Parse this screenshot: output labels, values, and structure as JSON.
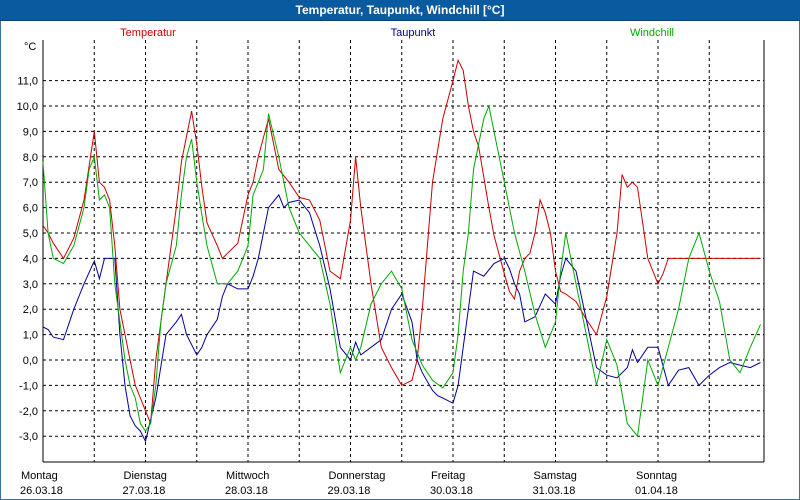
{
  "window": {
    "title": "Temperatur, Taupunkt, Windchill [°C]"
  },
  "chart_data": {
    "type": "line",
    "title": "Temperatur, Taupunkt, Windchill [°C]",
    "ylabel": "°C",
    "ylim": [
      -3.8,
      12.4
    ],
    "yticks": [
      -3,
      -2,
      -1,
      0,
      1,
      2,
      3,
      4,
      5,
      6,
      7,
      8,
      9,
      10,
      11
    ],
    "yticklabels": [
      "-3,0",
      "-2,0",
      "-1,0",
      "0,0",
      "1,0",
      "2,0",
      "3,0",
      "4,0",
      "5,0",
      "6,0",
      "7,0",
      "8,0",
      "9,0",
      "10,0",
      "11,0"
    ],
    "xlim": [
      0,
      7.0
    ],
    "days": [
      {
        "name": "Montag",
        "date": "26.03.18"
      },
      {
        "name": "Dienstag",
        "date": "27.03.18"
      },
      {
        "name": "Mittwoch",
        "date": "28.03.18"
      },
      {
        "name": "Donnerstag",
        "date": "29.03.18"
      },
      {
        "name": "Freitag",
        "date": "30.03.18"
      },
      {
        "name": "Samstag",
        "date": "31.03.18"
      },
      {
        "name": "Sonntag",
        "date": "01.04.18"
      }
    ],
    "grid": true,
    "series": [
      {
        "name": "Temperatur",
        "color": "#cc0000",
        "x": [
          0,
          0.05,
          0.1,
          0.2,
          0.3,
          0.4,
          0.5,
          0.55,
          0.6,
          0.65,
          0.7,
          0.75,
          0.8,
          0.85,
          0.9,
          0.95,
          1.0,
          1.05,
          1.1,
          1.2,
          1.3,
          1.35,
          1.4,
          1.45,
          1.5,
          1.55,
          1.6,
          1.7,
          1.75,
          1.8,
          1.9,
          2.0,
          2.05,
          2.1,
          2.2,
          2.3,
          2.4,
          2.5,
          2.6,
          2.7,
          2.8,
          2.9,
          3.0,
          3.05,
          3.1,
          3.2,
          3.3,
          3.4,
          3.5,
          3.6,
          3.65,
          3.7,
          3.8,
          3.9,
          4.0,
          4.05,
          4.1,
          4.15,
          4.2,
          4.25,
          4.3,
          4.35,
          4.4,
          4.5,
          4.55,
          4.6,
          4.65,
          4.7,
          4.75,
          4.8,
          4.85,
          4.9,
          4.95,
          5.0,
          5.05,
          5.1,
          5.2,
          5.3,
          5.4,
          5.5,
          5.6,
          5.65,
          5.7,
          5.75,
          5.8,
          5.9,
          6.0,
          6.05,
          6.1,
          6.2,
          6.3,
          6.4,
          6.5,
          6.6,
          6.7,
          6.8,
          6.9,
          7.0
        ],
        "values": [
          5.3,
          5.0,
          4.6,
          4.0,
          4.8,
          6.3,
          9.0,
          7.0,
          6.8,
          6.3,
          4.5,
          2.0,
          1.0,
          0.0,
          -1.0,
          -1.5,
          -2.0,
          -2.5,
          0.0,
          3.0,
          6.0,
          7.8,
          8.8,
          9.8,
          8.5,
          6.8,
          5.4,
          4.5,
          4.0,
          4.2,
          4.6,
          6.5,
          7.0,
          8.0,
          9.5,
          7.5,
          7.0,
          6.4,
          6.3,
          5.5,
          3.5,
          3.2,
          5.5,
          8.0,
          6.0,
          3.0,
          0.5,
          -0.3,
          -1.0,
          -0.8,
          0.0,
          2.0,
          7.0,
          9.5,
          11.0,
          11.8,
          11.4,
          10.0,
          9.0,
          8.4,
          7.2,
          6.0,
          4.9,
          3.4,
          2.7,
          2.4,
          3.5,
          4.0,
          4.2,
          5.0,
          6.3,
          5.8,
          5.0,
          3.5,
          2.7,
          2.6,
          2.3,
          1.6,
          1.0,
          2.5,
          5.0,
          7.3,
          6.8,
          7.0,
          6.8,
          4.0,
          3.0,
          3.4,
          4.0,
          4.0,
          4.0,
          4.0,
          4.0,
          4.0,
          4.0,
          4.0,
          4.0,
          4.0
        ]
      },
      {
        "name": "Taupunkt",
        "color": "#000099",
        "x": [
          0,
          0.05,
          0.1,
          0.2,
          0.3,
          0.35,
          0.4,
          0.5,
          0.55,
          0.6,
          0.7,
          0.75,
          0.8,
          0.85,
          0.9,
          0.95,
          1.0,
          1.1,
          1.2,
          1.3,
          1.35,
          1.4,
          1.5,
          1.55,
          1.6,
          1.7,
          1.75,
          1.8,
          1.9,
          2.0,
          2.05,
          2.1,
          2.15,
          2.2,
          2.3,
          2.35,
          2.4,
          2.5,
          2.6,
          2.7,
          2.8,
          2.9,
          3.0,
          3.05,
          3.1,
          3.2,
          3.3,
          3.4,
          3.5,
          3.6,
          3.65,
          3.7,
          3.8,
          3.85,
          3.9,
          4.0,
          4.05,
          4.1,
          4.2,
          4.3,
          4.4,
          4.5,
          4.55,
          4.6,
          4.65,
          4.7,
          4.8,
          4.9,
          5.0,
          5.05,
          5.1,
          5.2,
          5.3,
          5.4,
          5.5,
          5.6,
          5.7,
          5.75,
          5.8,
          5.9,
          6.0,
          6.1,
          6.2,
          6.3,
          6.4,
          6.5,
          6.6,
          6.7,
          6.8,
          6.9,
          7.0
        ],
        "values": [
          1.3,
          1.2,
          0.9,
          0.8,
          2.0,
          2.5,
          3.0,
          3.9,
          3.2,
          4.0,
          4.0,
          1.0,
          -1.0,
          -2.2,
          -2.6,
          -2.8,
          -3.2,
          -1.5,
          1.0,
          1.5,
          1.8,
          1.0,
          0.2,
          0.5,
          1.0,
          1.6,
          2.5,
          3.0,
          2.8,
          2.8,
          3.3,
          4.0,
          5.0,
          6.0,
          6.5,
          6.0,
          6.2,
          6.3,
          5.8,
          4.5,
          2.8,
          0.5,
          0.0,
          0.7,
          0.2,
          0.5,
          0.8,
          2.0,
          2.6,
          1.5,
          0.0,
          -0.5,
          -1.2,
          -1.4,
          -1.5,
          -1.7,
          -1.0,
          0.5,
          3.5,
          3.3,
          3.8,
          4.0,
          3.6,
          3.0,
          2.6,
          1.5,
          1.7,
          2.6,
          2.2,
          3.3,
          4.0,
          3.5,
          1.6,
          -0.3,
          -0.6,
          -0.7,
          -0.3,
          0.4,
          -0.1,
          0.5,
          0.5,
          -1.0,
          -0.4,
          -0.3,
          -1.0,
          -0.6,
          -0.3,
          -0.1,
          -0.2,
          -0.3,
          -0.1
        ]
      },
      {
        "name": "Windchill",
        "color": "#00aa00",
        "x": [
          0,
          0.05,
          0.1,
          0.2,
          0.3,
          0.4,
          0.45,
          0.5,
          0.55,
          0.6,
          0.65,
          0.7,
          0.75,
          0.8,
          0.85,
          0.9,
          0.95,
          1.0,
          1.05,
          1.1,
          1.15,
          1.2,
          1.3,
          1.35,
          1.4,
          1.45,
          1.5,
          1.55,
          1.6,
          1.7,
          1.8,
          1.9,
          2.0,
          2.05,
          2.1,
          2.15,
          2.2,
          2.3,
          2.4,
          2.5,
          2.6,
          2.7,
          2.8,
          2.9,
          3.0,
          3.05,
          3.1,
          3.2,
          3.3,
          3.4,
          3.5,
          3.6,
          3.7,
          3.8,
          3.9,
          4.0,
          4.05,
          4.1,
          4.15,
          4.2,
          4.25,
          4.3,
          4.35,
          4.4,
          4.5,
          4.6,
          4.7,
          4.8,
          4.9,
          5.0,
          5.05,
          5.1,
          5.2,
          5.3,
          5.4,
          5.5,
          5.6,
          5.7,
          5.8,
          5.9,
          6.0,
          6.1,
          6.2,
          6.3,
          6.4,
          6.5,
          6.6,
          6.7,
          6.8,
          6.9,
          7.0
        ],
        "values": [
          7.8,
          5.0,
          4.0,
          3.8,
          4.5,
          6.0,
          7.5,
          8.0,
          6.3,
          6.5,
          6.0,
          3.0,
          1.5,
          0.0,
          -1.0,
          -1.5,
          -2.5,
          -2.8,
          -2.5,
          -1.0,
          1.5,
          3.0,
          4.5,
          6.5,
          8.0,
          8.7,
          7.0,
          5.7,
          4.5,
          3.0,
          3.0,
          3.5,
          4.5,
          6.5,
          7.0,
          7.5,
          9.7,
          8.0,
          6.0,
          5.0,
          4.5,
          4.0,
          2.2,
          -0.5,
          0.5,
          0.0,
          0.5,
          2.2,
          3.0,
          3.5,
          2.8,
          0.8,
          -0.2,
          -0.8,
          -1.1,
          -0.5,
          1.0,
          3.5,
          5.0,
          7.5,
          8.5,
          9.5,
          10.0,
          9.0,
          7.0,
          5.0,
          3.5,
          1.8,
          0.5,
          1.5,
          3.5,
          5.0,
          3.0,
          1.0,
          -1.0,
          0.8,
          -0.2,
          -2.5,
          -3.0,
          0.0,
          -1.0,
          0.5,
          2.0,
          4.0,
          5.0,
          3.5,
          2.3,
          0.0,
          -0.5,
          0.5,
          1.4
        ]
      }
    ]
  }
}
